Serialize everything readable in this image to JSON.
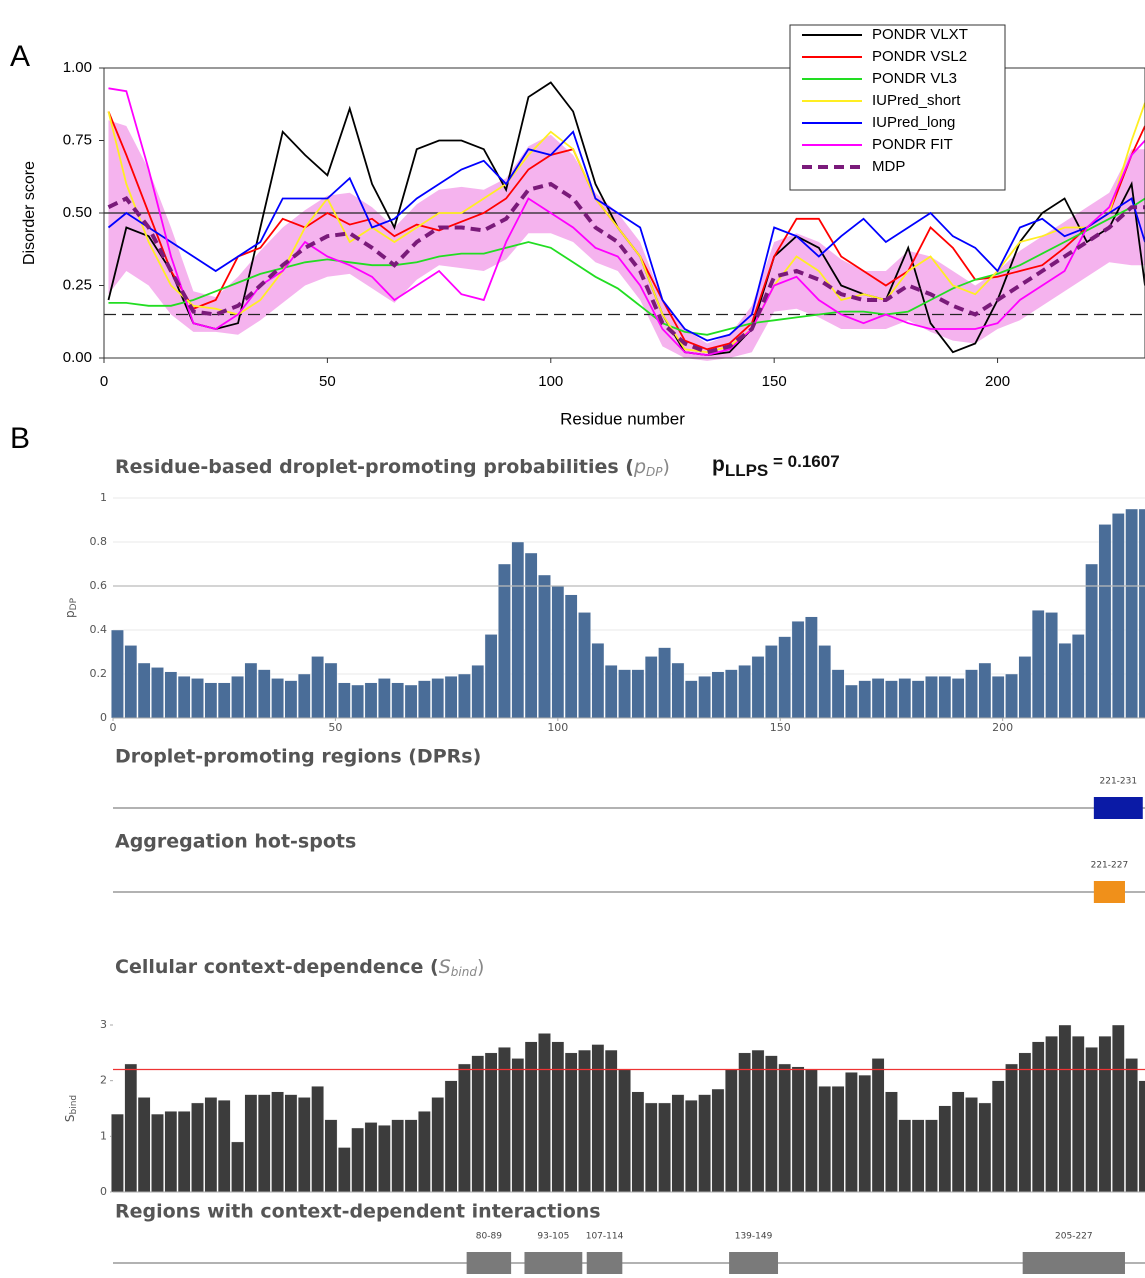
{
  "chart_data": [
    {
      "type": "line",
      "panel_label": "A",
      "xlabel": "Residue number",
      "ylabel": "Disorder score",
      "xlim": [
        0,
        233
      ],
      "ylim": [
        0,
        1
      ],
      "xticks": [
        0,
        50,
        100,
        150,
        200
      ],
      "yticks": [
        {
          "value": 0,
          "label": "0.00"
        },
        {
          "value": 0.25,
          "label": "0.25"
        },
        {
          "value": 0.5,
          "label": "0.50"
        },
        {
          "value": 0.75,
          "label": "0.75"
        },
        {
          "value": 1,
          "label": "1.00"
        }
      ],
      "hlines": [
        {
          "value": 0.5,
          "dashed": false
        },
        {
          "value": 0.15,
          "dashed": true
        }
      ],
      "x": [
        1,
        5,
        10,
        15,
        20,
        25,
        30,
        35,
        40,
        45,
        50,
        55,
        60,
        65,
        70,
        75,
        80,
        85,
        90,
        95,
        100,
        105,
        110,
        115,
        120,
        125,
        130,
        135,
        140,
        145,
        150,
        155,
        160,
        165,
        170,
        175,
        180,
        185,
        190,
        195,
        200,
        205,
        210,
        215,
        220,
        225,
        230,
        233
      ],
      "series": [
        {
          "name": "PONDR VLXT",
          "color": "#000000",
          "values": [
            0.2,
            0.45,
            0.42,
            0.3,
            0.12,
            0.1,
            0.12,
            0.45,
            0.78,
            0.7,
            0.63,
            0.86,
            0.6,
            0.45,
            0.72,
            0.75,
            0.75,
            0.72,
            0.58,
            0.9,
            0.95,
            0.85,
            0.6,
            0.45,
            0.35,
            0.15,
            0.02,
            0.01,
            0.02,
            0.1,
            0.35,
            0.42,
            0.38,
            0.25,
            0.22,
            0.2,
            0.38,
            0.12,
            0.02,
            0.05,
            0.2,
            0.4,
            0.5,
            0.55,
            0.4,
            0.45,
            0.6,
            0.25
          ]
        },
        {
          "name": "PONDR VSL2",
          "color": "#ff0000",
          "values": [
            0.85,
            0.7,
            0.5,
            0.3,
            0.17,
            0.2,
            0.35,
            0.38,
            0.48,
            0.45,
            0.5,
            0.46,
            0.48,
            0.42,
            0.46,
            0.44,
            0.47,
            0.5,
            0.55,
            0.65,
            0.7,
            0.72,
            0.55,
            0.45,
            0.35,
            0.2,
            0.06,
            0.03,
            0.05,
            0.12,
            0.35,
            0.48,
            0.48,
            0.35,
            0.3,
            0.25,
            0.3,
            0.45,
            0.38,
            0.27,
            0.28,
            0.3,
            0.32,
            0.38,
            0.45,
            0.5,
            0.7,
            0.8
          ]
        },
        {
          "name": "PONDR VL3",
          "color": "#22dd22",
          "values": [
            0.19,
            0.19,
            0.18,
            0.18,
            0.2,
            0.23,
            0.26,
            0.29,
            0.31,
            0.33,
            0.34,
            0.33,
            0.32,
            0.32,
            0.33,
            0.35,
            0.36,
            0.36,
            0.38,
            0.4,
            0.38,
            0.33,
            0.28,
            0.24,
            0.18,
            0.12,
            0.09,
            0.08,
            0.1,
            0.12,
            0.13,
            0.14,
            0.15,
            0.16,
            0.16,
            0.15,
            0.16,
            0.2,
            0.24,
            0.27,
            0.29,
            0.32,
            0.36,
            0.4,
            0.44,
            0.48,
            0.52,
            0.55
          ]
        },
        {
          "name": "IUPred_short",
          "color": "#ffee22",
          "values": [
            0.85,
            0.6,
            0.4,
            0.25,
            0.18,
            0.17,
            0.15,
            0.2,
            0.3,
            0.45,
            0.55,
            0.4,
            0.45,
            0.4,
            0.45,
            0.5,
            0.5,
            0.55,
            0.6,
            0.7,
            0.78,
            0.72,
            0.55,
            0.45,
            0.35,
            0.15,
            0.03,
            0.02,
            0.04,
            0.1,
            0.25,
            0.35,
            0.3,
            0.2,
            0.22,
            0.2,
            0.3,
            0.35,
            0.25,
            0.22,
            0.3,
            0.4,
            0.42,
            0.45,
            0.45,
            0.5,
            0.75,
            0.88
          ]
        },
        {
          "name": "IUPred_long",
          "color": "#0000ff",
          "values": [
            0.45,
            0.5,
            0.45,
            0.4,
            0.35,
            0.3,
            0.35,
            0.4,
            0.55,
            0.55,
            0.55,
            0.62,
            0.45,
            0.48,
            0.55,
            0.6,
            0.65,
            0.68,
            0.6,
            0.72,
            0.7,
            0.78,
            0.55,
            0.5,
            0.45,
            0.2,
            0.1,
            0.06,
            0.08,
            0.15,
            0.45,
            0.42,
            0.35,
            0.42,
            0.48,
            0.4,
            0.45,
            0.5,
            0.42,
            0.38,
            0.3,
            0.45,
            0.48,
            0.42,
            0.45,
            0.5,
            0.55,
            0.4
          ]
        },
        {
          "name": "PONDR FIT",
          "color": "#ff00ff",
          "values": [
            0.93,
            0.92,
            0.65,
            0.35,
            0.12,
            0.1,
            0.15,
            0.25,
            0.3,
            0.4,
            0.35,
            0.32,
            0.28,
            0.2,
            0.25,
            0.3,
            0.22,
            0.2,
            0.4,
            0.55,
            0.5,
            0.45,
            0.38,
            0.35,
            0.25,
            0.1,
            0.02,
            0.01,
            0.03,
            0.1,
            0.25,
            0.28,
            0.2,
            0.15,
            0.12,
            0.15,
            0.12,
            0.1,
            0.1,
            0.1,
            0.12,
            0.2,
            0.25,
            0.3,
            0.45,
            0.52,
            0.7,
            0.75
          ]
        },
        {
          "name": "MDP",
          "color": "#7a1a7a",
          "dashed": true,
          "band_color": "#f5b3ee",
          "values": [
            0.52,
            0.55,
            0.45,
            0.3,
            0.16,
            0.15,
            0.18,
            0.25,
            0.32,
            0.38,
            0.42,
            0.43,
            0.38,
            0.32,
            0.4,
            0.45,
            0.45,
            0.44,
            0.48,
            0.58,
            0.6,
            0.55,
            0.45,
            0.4,
            0.3,
            0.12,
            0.05,
            0.02,
            0.04,
            0.1,
            0.28,
            0.3,
            0.27,
            0.22,
            0.2,
            0.2,
            0.25,
            0.22,
            0.18,
            0.15,
            0.2,
            0.25,
            0.3,
            0.35,
            0.4,
            0.45,
            0.52,
            0.52
          ],
          "error": [
            0.3,
            0.25,
            0.2,
            0.15,
            0.07,
            0.06,
            0.1,
            0.12,
            0.13,
            0.13,
            0.14,
            0.14,
            0.14,
            0.13,
            0.13,
            0.13,
            0.14,
            0.14,
            0.14,
            0.15,
            0.17,
            0.15,
            0.12,
            0.1,
            0.1,
            0.08,
            0.05,
            0.03,
            0.04,
            0.08,
            0.12,
            0.13,
            0.13,
            0.12,
            0.1,
            0.1,
            0.12,
            0.13,
            0.12,
            0.1,
            0.1,
            0.12,
            0.12,
            0.12,
            0.12,
            0.12,
            0.2,
            0.2
          ]
        }
      ]
    },
    {
      "type": "bar",
      "panel_label": "B",
      "title": {
        "text": "Residue-based droplet-promoting probabilities (",
        "symbol": "p",
        "sub": "DP",
        "close": ")"
      },
      "annotation": {
        "symbol": "p",
        "sub": "LLPS",
        "text": " = 0.1607"
      },
      "ylabel": {
        "symbol": "p",
        "sub": "DP"
      },
      "color": "#4a6d98",
      "threshold": 0.6,
      "grid": true,
      "xlim": [
        0,
        232
      ],
      "ylim": [
        0,
        1
      ],
      "xticks": [
        0,
        50,
        100,
        150,
        200
      ],
      "yticks": [
        0,
        0.2,
        0.4,
        0.6,
        0.8,
        1
      ],
      "x": [
        1,
        4,
        7,
        10,
        13,
        16,
        19,
        22,
        25,
        28,
        31,
        34,
        37,
        40,
        43,
        46,
        49,
        52,
        55,
        58,
        61,
        64,
        67,
        70,
        73,
        76,
        79,
        82,
        85,
        88,
        91,
        94,
        97,
        100,
        103,
        106,
        109,
        112,
        115,
        118,
        121,
        124,
        127,
        130,
        133,
        136,
        139,
        142,
        145,
        148,
        151,
        154,
        157,
        160,
        163,
        166,
        169,
        172,
        175,
        178,
        181,
        184,
        187,
        190,
        193,
        196,
        199,
        202,
        205,
        208,
        211,
        214,
        217,
        220,
        223,
        226,
        229,
        232
      ],
      "values": [
        0.4,
        0.33,
        0.25,
        0.23,
        0.21,
        0.19,
        0.18,
        0.16,
        0.16,
        0.19,
        0.25,
        0.22,
        0.18,
        0.17,
        0.2,
        0.28,
        0.25,
        0.16,
        0.15,
        0.16,
        0.18,
        0.16,
        0.15,
        0.17,
        0.18,
        0.19,
        0.2,
        0.24,
        0.38,
        0.7,
        0.8,
        0.75,
        0.65,
        0.6,
        0.56,
        0.48,
        0.34,
        0.24,
        0.22,
        0.22,
        0.28,
        0.32,
        0.25,
        0.17,
        0.19,
        0.21,
        0.22,
        0.24,
        0.28,
        0.33,
        0.37,
        0.44,
        0.46,
        0.33,
        0.22,
        0.15,
        0.17,
        0.18,
        0.17,
        0.18,
        0.17,
        0.19,
        0.19,
        0.18,
        0.22,
        0.25,
        0.19,
        0.2,
        0.28,
        0.49,
        0.48,
        0.34,
        0.38,
        0.7,
        0.88,
        0.93,
        0.95,
        0.95
      ]
    },
    {
      "type": "regions",
      "title": "Droplet-promoting regions (DPRs)",
      "xlim": [
        0,
        232
      ],
      "color": "#0a1aa6",
      "regions": [
        {
          "label": "221-231",
          "start": 221,
          "end": 231
        }
      ]
    },
    {
      "type": "regions",
      "title": "Aggregation hot-spots",
      "xlim": [
        0,
        232
      ],
      "color": "#f0901a",
      "regions": [
        {
          "label": "221-227",
          "start": 221,
          "end": 227
        }
      ]
    },
    {
      "type": "bar",
      "title": {
        "text": "Cellular context-dependence (",
        "symbol": "S",
        "sub": "bind",
        "close": ")"
      },
      "ylabel": {
        "symbol": "S",
        "sub": "bind"
      },
      "color": "#3c3c3c",
      "threshold": 2.2,
      "threshold_color": "#ee3333",
      "grid": false,
      "xlim": [
        0,
        232
      ],
      "ylim": [
        0,
        3
      ],
      "yticks": [
        0,
        1,
        2,
        3
      ],
      "x": [
        1,
        4,
        7,
        10,
        13,
        16,
        19,
        22,
        25,
        28,
        31,
        34,
        37,
        40,
        43,
        46,
        49,
        52,
        55,
        58,
        61,
        64,
        67,
        70,
        73,
        76,
        79,
        82,
        85,
        88,
        91,
        94,
        97,
        100,
        103,
        106,
        109,
        112,
        115,
        118,
        121,
        124,
        127,
        130,
        133,
        136,
        139,
        142,
        145,
        148,
        151,
        154,
        157,
        160,
        163,
        166,
        169,
        172,
        175,
        178,
        181,
        184,
        187,
        190,
        193,
        196,
        199,
        202,
        205,
        208,
        211,
        214,
        217,
        220,
        223,
        226,
        229,
        232
      ],
      "values": [
        1.4,
        2.3,
        1.7,
        1.4,
        1.45,
        1.45,
        1.6,
        1.7,
        1.65,
        0.9,
        1.75,
        1.75,
        1.8,
        1.75,
        1.7,
        1.9,
        1.3,
        0.8,
        1.15,
        1.25,
        1.2,
        1.3,
        1.3,
        1.45,
        1.7,
        2.0,
        2.3,
        2.45,
        2.5,
        2.6,
        2.4,
        2.7,
        2.85,
        2.7,
        2.5,
        2.55,
        2.65,
        2.55,
        2.2,
        1.8,
        1.6,
        1.6,
        1.75,
        1.65,
        1.75,
        1.85,
        2.2,
        2.5,
        2.55,
        2.45,
        2.3,
        2.25,
        2.2,
        1.9,
        1.9,
        2.15,
        2.1,
        2.4,
        1.8,
        1.3,
        1.3,
        1.3,
        1.55,
        1.8,
        1.7,
        1.6,
        2.0,
        2.3,
        2.5,
        2.7,
        2.8,
        3.0,
        2.8,
        2.6,
        2.8,
        3.0,
        2.4,
        2.0
      ]
    },
    {
      "type": "regions",
      "title": "Regions with context-dependent interactions",
      "xlim": [
        0,
        232
      ],
      "color": "#7a7a7a",
      "regions": [
        {
          "label": "80-89",
          "start": 80,
          "end": 89
        },
        {
          "label": "93-105",
          "start": 93,
          "end": 105
        },
        {
          "label": "107-114",
          "start": 107,
          "end": 114
        },
        {
          "label": "139-149",
          "start": 139,
          "end": 149
        },
        {
          "label": "205-227",
          "start": 205,
          "end": 227
        }
      ]
    }
  ]
}
